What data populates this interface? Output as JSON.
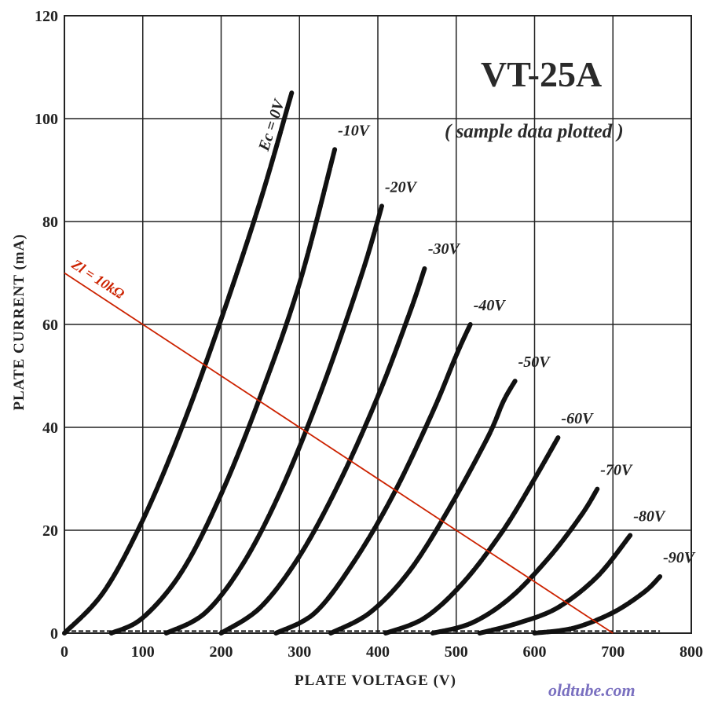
{
  "chart_data": {
    "type": "line",
    "title": "VT-25A",
    "subtitle": "( sample data plotted )",
    "xlabel": "PLATE  VOLTAGE  (V)",
    "ylabel": "PLATE  CURRENT  (mA)",
    "xlim": [
      0,
      800
    ],
    "ylim": [
      0,
      120
    ],
    "x_ticks": [
      "0",
      "100",
      "200",
      "300",
      "400",
      "500",
      "600",
      "700",
      "800"
    ],
    "y_ticks": [
      "0",
      "20",
      "40",
      "60",
      "80",
      "100",
      "120"
    ],
    "grid": true,
    "series": [
      {
        "name": "Ec = 0V",
        "x": [
          0,
          50,
          100,
          150,
          200,
          250,
          290
        ],
        "y": [
          0,
          8,
          22,
          40,
          61,
          84,
          105
        ]
      },
      {
        "name": "-10V",
        "x": [
          60,
          100,
          150,
          200,
          250,
          300,
          345
        ],
        "y": [
          0,
          3,
          12,
          27,
          46,
          68,
          94
        ]
      },
      {
        "name": "-20V",
        "x": [
          130,
          180,
          230,
          280,
          330,
          380,
          405
        ],
        "y": [
          0,
          4,
          14,
          29,
          48,
          70,
          83
        ]
      },
      {
        "name": "-30V",
        "x": [
          200,
          250,
          300,
          350,
          400,
          440,
          460
        ],
        "y": [
          0,
          5,
          15,
          29,
          46,
          62,
          71
        ]
      },
      {
        "name": "-40V",
        "x": [
          270,
          320,
          370,
          420,
          470,
          500,
          518
        ],
        "y": [
          0,
          4,
          14,
          27,
          43,
          54,
          60
        ]
      },
      {
        "name": "-50V",
        "x": [
          340,
          390,
          440,
          490,
          540,
          560,
          575
        ],
        "y": [
          0,
          4,
          12,
          24,
          38,
          45,
          49
        ]
      },
      {
        "name": "-60V",
        "x": [
          410,
          460,
          510,
          560,
          600,
          630
        ],
        "y": [
          0,
          3,
          10,
          20,
          30,
          38
        ]
      },
      {
        "name": "-70V",
        "x": [
          470,
          520,
          570,
          620,
          660,
          680
        ],
        "y": [
          0,
          2,
          7,
          15,
          23,
          28
        ]
      },
      {
        "name": "-80V",
        "x": [
          530,
          580,
          630,
          680,
          722
        ],
        "y": [
          0,
          2,
          5,
          11,
          19
        ]
      },
      {
        "name": "-90V",
        "x": [
          600,
          650,
          700,
          740,
          760
        ],
        "y": [
          0,
          1,
          4,
          8,
          11
        ]
      }
    ],
    "load_line": {
      "name": "Zl = 10kΩ",
      "x": [
        0,
        700
      ],
      "y": [
        70,
        0
      ],
      "color": "#cc2200"
    },
    "colors": {
      "curves": "#111111",
      "grid": "#222222",
      "load_line": "#cc2200",
      "watermark": "#7a70c0"
    }
  },
  "watermark": "oldtube.com"
}
